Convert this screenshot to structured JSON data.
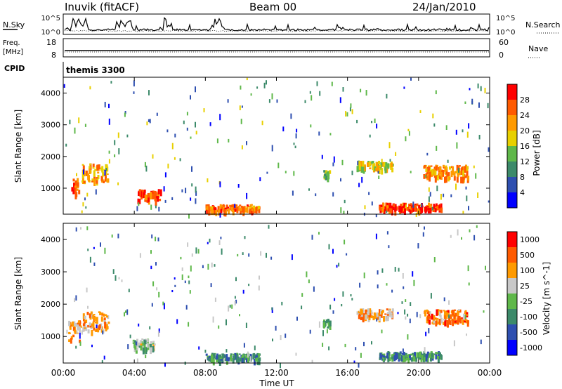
{
  "header": {
    "station": "Inuvik (fitACF)",
    "beam": "Beam 00",
    "date": "24/Jan/2010"
  },
  "top_panel": {
    "left_label": "N.Sky",
    "right_label": "N.Search",
    "left_ticks": [
      "10^5",
      "10^0"
    ],
    "right_ticks": [
      "10^5",
      "10^0"
    ]
  },
  "freq_panel": {
    "left_label_line1": "Freq.",
    "left_label_line2": "[MHz]",
    "right_label": "Nave",
    "left_ticks": [
      "18",
      "8"
    ],
    "right_ticks": [
      "60",
      "0"
    ]
  },
  "cpid_panel": {
    "label": "CPID",
    "value": "themis 3300"
  },
  "chart_data": [
    {
      "type": "heatmap",
      "name": "power",
      "ylabel": "Slant Range [km]",
      "xlabel": "",
      "yticks": [
        "1000",
        "2000",
        "3000",
        "4000"
      ],
      "ylim": [
        180,
        4500
      ],
      "colorbar_label": "Power [dB]",
      "colorbar_ticks": [
        "4",
        "8",
        "12",
        "16",
        "20",
        "24",
        "28"
      ],
      "colors": [
        "#0000ff",
        "#2e4fb0",
        "#3c8a6a",
        "#5fb84a",
        "#e8d000",
        "#ff9a00",
        "#ff5a00",
        "#ff0000"
      ],
      "blobs": [
        {
          "t": 0.6,
          "r": 1100,
          "dt": 0.5,
          "dr": 500,
          "level": 0.85
        },
        {
          "t": 1.8,
          "r": 1500,
          "dt": 1.5,
          "dr": 600,
          "level": 0.7
        },
        {
          "t": 4.8,
          "r": 800,
          "dt": 1.3,
          "dr": 350,
          "level": 0.9
        },
        {
          "t": 9.5,
          "r": 400,
          "dt": 3.0,
          "dr": 200,
          "level": 0.8
        },
        {
          "t": 14.8,
          "r": 1450,
          "dt": 0.4,
          "dr": 300,
          "level": 0.45
        },
        {
          "t": 17.5,
          "r": 1750,
          "dt": 2.0,
          "dr": 250,
          "level": 0.55
        },
        {
          "t": 21.5,
          "r": 1550,
          "dt": 2.5,
          "dr": 400,
          "level": 0.75
        },
        {
          "t": 19.5,
          "r": 450,
          "dt": 3.5,
          "dr": 200,
          "level": 0.9
        }
      ]
    },
    {
      "type": "heatmap",
      "name": "velocity",
      "ylabel": "Slant Range [km]",
      "xlabel": "Time UT",
      "xticks": [
        "00:00",
        "04:00",
        "08:00",
        "12:00",
        "16:00",
        "20:00",
        "00:00"
      ],
      "yticks": [
        "1000",
        "2000",
        "3000",
        "4000"
      ],
      "ylim": [
        180,
        4500
      ],
      "colorbar_label": "Velocity [m s^-1]",
      "colorbar_ticks": [
        "1000",
        "500",
        "100",
        "25",
        "-25",
        "-100",
        "-500",
        "-1000"
      ],
      "colors": [
        "#0000ff",
        "#2e4fb0",
        "#3c8a6a",
        "#5fb84a",
        "#c8c8c8",
        "#ff9a00",
        "#ff5a00",
        "#ff0000"
      ],
      "blobs": [
        {
          "t": 0.6,
          "r": 1200,
          "dt": 0.7,
          "dr": 600,
          "level": 0.75
        },
        {
          "t": 1.8,
          "r": 1500,
          "dt": 1.5,
          "dr": 600,
          "level": 0.72
        },
        {
          "t": 4.5,
          "r": 800,
          "dt": 1.2,
          "dr": 300,
          "level": 0.5
        },
        {
          "t": 9.5,
          "r": 400,
          "dt": 3.0,
          "dr": 200,
          "level": 0.3
        },
        {
          "t": 14.8,
          "r": 1450,
          "dt": 0.4,
          "dr": 300,
          "level": 0.35
        },
        {
          "t": 17.5,
          "r": 1750,
          "dt": 2.0,
          "dr": 250,
          "level": 0.72
        },
        {
          "t": 21.5,
          "r": 1650,
          "dt": 2.5,
          "dr": 400,
          "level": 0.78
        },
        {
          "t": 19.5,
          "r": 450,
          "dt": 3.5,
          "dr": 200,
          "level": 0.3
        }
      ]
    }
  ]
}
